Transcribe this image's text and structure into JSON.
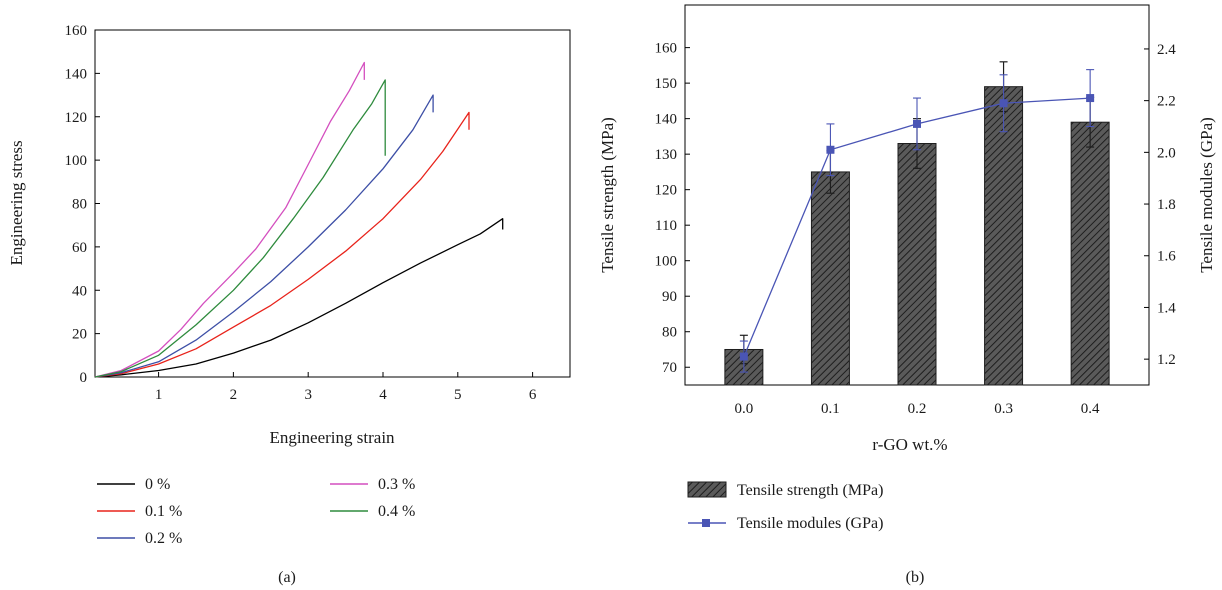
{
  "chart_data": [
    {
      "type": "line",
      "panel_label": "(a)",
      "xlabel": "Engineering strain",
      "ylabel": "Engineering stress",
      "xlim": [
        0.15,
        6.5
      ],
      "ylim": [
        0,
        160
      ],
      "x_ticks": [
        1,
        2,
        3,
        4,
        5,
        6
      ],
      "y_ticks": [
        0,
        20,
        40,
        60,
        80,
        100,
        120,
        140,
        160
      ],
      "grid": false,
      "legend_position": "below",
      "series": [
        {
          "name": "0 %",
          "color": "#000000",
          "x": [
            0.15,
            0.5,
            1.0,
            1.5,
            2.0,
            2.5,
            3.0,
            3.5,
            4.0,
            4.5,
            5.0,
            5.3,
            5.6,
            5.6
          ],
          "y": [
            0,
            1,
            3,
            6,
            11,
            17,
            25,
            34,
            43.5,
            52.5,
            61,
            66,
            73,
            68
          ]
        },
        {
          "name": "0.1 %",
          "color": "#e8231b",
          "x": [
            0.15,
            0.5,
            1.0,
            1.5,
            2.0,
            2.5,
            3.0,
            3.5,
            4.0,
            4.5,
            4.8,
            5.15,
            5.15
          ],
          "y": [
            0,
            1.5,
            6,
            13,
            23,
            33,
            45,
            58,
            73,
            91,
            104,
            122,
            114
          ]
        },
        {
          "name": "0.2 %",
          "color": "#3d4fa6",
          "x": [
            0.15,
            0.5,
            1.0,
            1.5,
            2.0,
            2.5,
            3.0,
            3.5,
            4.0,
            4.4,
            4.67,
            4.67
          ],
          "y": [
            0,
            2,
            7,
            17,
            30,
            44,
            60,
            77,
            96,
            114,
            130,
            122
          ]
        },
        {
          "name": "0.3 %",
          "color": "#d44fbf",
          "x": [
            0.15,
            0.5,
            1.0,
            1.3,
            1.6,
            2.0,
            2.3,
            2.7,
            3.0,
            3.3,
            3.55,
            3.75,
            3.75
          ],
          "y": [
            0,
            3,
            12,
            22,
            34,
            48,
            59,
            78,
            98,
            118,
            132,
            145,
            137
          ]
        },
        {
          "name": "0.4 %",
          "color": "#2e8b3d",
          "x": [
            0.15,
            0.5,
            1.0,
            1.5,
            2.0,
            2.4,
            2.8,
            3.2,
            3.6,
            3.85,
            4.03,
            4.03
          ],
          "y": [
            0,
            2.5,
            10,
            24,
            40,
            55,
            73,
            92,
            114,
            126,
            137,
            102
          ]
        }
      ]
    },
    {
      "type": "bar",
      "panel_label": "(b)",
      "xlabel": "r-GO wt.%",
      "ylabel": "Tensile strength (MPa)",
      "y2label": "Tensile modules (GPa)",
      "categories": [
        "0.0",
        "0.1",
        "0.2",
        "0.3",
        "0.4"
      ],
      "ylim": [
        65,
        172
      ],
      "y2lim": [
        1.1,
        2.57
      ],
      "y_ticks": [
        70,
        80,
        90,
        100,
        110,
        120,
        130,
        140,
        150,
        160
      ],
      "y2_ticks": [
        "1.2",
        "1.4",
        "1.6",
        "1.8",
        "2.0",
        "2.2",
        "2.4"
      ],
      "grid": false,
      "legend_position": "below",
      "series": [
        {
          "name": "Tensile strength (MPa)",
          "type": "bar",
          "axis": "left",
          "color": "#4a4a4a",
          "values": [
            75,
            125,
            133,
            149,
            139
          ],
          "errors": [
            4,
            6,
            7,
            7,
            7
          ]
        },
        {
          "name": "Tensile modules (GPa)",
          "type": "line",
          "axis": "right",
          "color": "#4a55b5",
          "values": [
            1.21,
            2.01,
            2.11,
            2.19,
            2.21
          ],
          "errors": [
            0.06,
            0.1,
            0.1,
            0.11,
            0.11
          ]
        }
      ]
    }
  ]
}
